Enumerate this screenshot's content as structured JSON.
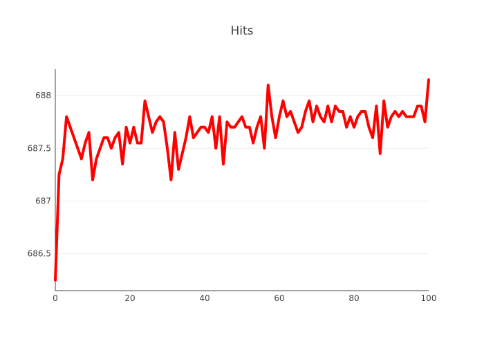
{
  "chart_data": {
    "type": "line",
    "title": "Hits",
    "xlabel": "",
    "ylabel": "",
    "xlim": [
      0,
      100
    ],
    "ylim": [
      686.15,
      688.25
    ],
    "x_ticks": [
      0,
      20,
      40,
      60,
      80,
      100
    ],
    "y_ticks": [
      686.5,
      687,
      687.5,
      688
    ],
    "x_tick_labels": [
      "0",
      "20",
      "40",
      "60",
      "80",
      "100"
    ],
    "y_tick_labels": [
      "686.5",
      "687",
      "687.5",
      "688"
    ],
    "grid": true,
    "legend": "none",
    "line_color": "#ff0000",
    "series": [
      {
        "x": [
          0,
          1,
          2,
          3,
          4,
          5,
          6,
          7,
          8,
          9,
          10,
          11,
          12,
          13,
          14,
          15,
          16,
          17,
          18,
          19,
          20,
          21,
          22,
          23,
          24,
          25,
          26,
          27,
          28,
          29,
          30,
          31,
          32,
          33,
          34,
          35,
          36,
          37,
          38,
          39,
          40,
          41,
          42,
          43,
          44,
          45,
          46,
          47,
          48,
          49,
          50,
          51,
          52,
          53,
          54,
          55,
          56,
          57,
          58,
          59,
          60,
          61,
          62,
          63,
          64,
          65,
          66,
          67,
          68,
          69,
          70,
          71,
          72,
          73,
          74,
          75,
          76,
          77,
          78,
          79,
          80,
          81,
          82,
          83,
          84,
          85,
          86,
          87,
          88,
          89,
          90,
          91,
          92,
          93,
          94,
          95,
          96,
          97,
          98,
          99,
          100
        ],
        "y": [
          686.25,
          687.25,
          687.4,
          687.8,
          687.7,
          687.6,
          687.5,
          687.4,
          687.55,
          687.65,
          687.2,
          687.4,
          687.5,
          687.6,
          687.6,
          687.5,
          687.6,
          687.65,
          687.35,
          687.7,
          687.55,
          687.7,
          687.55,
          687.55,
          687.95,
          687.8,
          687.65,
          687.75,
          687.8,
          687.75,
          687.5,
          687.2,
          687.65,
          687.3,
          687.45,
          687.6,
          687.8,
          687.6,
          687.65,
          687.7,
          687.7,
          687.65,
          687.8,
          687.5,
          687.8,
          687.35,
          687.75,
          687.7,
          687.7,
          687.75,
          687.8,
          687.7,
          687.7,
          687.55,
          687.7,
          687.8,
          687.5,
          688.1,
          687.8,
          687.6,
          687.8,
          687.95,
          687.8,
          687.85,
          687.75,
          687.65,
          687.7,
          687.85,
          687.95,
          687.75,
          687.9,
          687.8,
          687.75,
          687.9,
          687.75,
          687.9,
          687.85,
          687.85,
          687.7,
          687.8,
          687.7,
          687.8,
          687.85,
          687.85,
          687.7,
          687.6,
          687.9,
          687.45,
          687.95,
          687.7,
          687.8,
          687.85,
          687.8,
          687.85,
          687.8,
          687.8,
          687.8,
          687.9,
          687.9,
          687.75,
          688.15
        ]
      }
    ]
  }
}
